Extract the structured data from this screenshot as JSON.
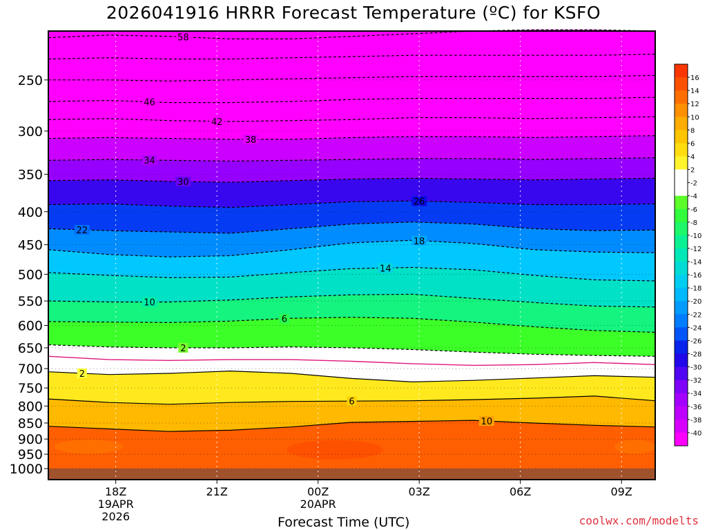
{
  "chart_data": {
    "type": "heatmap",
    "title": "2026041916 HRRR Forecast Temperature (ºC) for KSFO",
    "xlabel": "Forecast Time (UTC)",
    "ylabel": "",
    "y_scale": "log-pressure (hPa), inverted",
    "ylim": [
      1000,
      210
    ],
    "y_ticks": [
      "250",
      "300",
      "350",
      "400",
      "450",
      "500",
      "550",
      "600",
      "650",
      "700",
      "750",
      "800",
      "850",
      "900",
      "950",
      "1000"
    ],
    "x_ticks": [
      {
        "hour": 18,
        "lines": [
          "18Z",
          "19APR",
          "2026"
        ]
      },
      {
        "hour": 21,
        "lines": [
          "21Z"
        ]
      },
      {
        "hour": 24,
        "lines": [
          "00Z",
          "20APR"
        ]
      },
      {
        "hour": 27,
        "lines": [
          "03Z"
        ]
      },
      {
        "hour": 30,
        "lines": [
          "06Z"
        ]
      },
      {
        "hour": 33,
        "lines": [
          "09Z"
        ]
      }
    ],
    "xlim_hours": [
      16,
      34
    ],
    "colorbar": {
      "min": -40,
      "max": 16,
      "step": 2,
      "labels": [
        "16",
        "14",
        "12",
        "10",
        "8",
        "6",
        "4",
        "2",
        "-2",
        "-4",
        "-6",
        "-8",
        "-10",
        "-12",
        "-14",
        "-16",
        "-18",
        "-20",
        "-22",
        "-24",
        "-26",
        "-28",
        "-30",
        "-32",
        "-34",
        "-36",
        "-38",
        "-40"
      ]
    },
    "surface_color": "#a0522d",
    "isotherms": [
      {
        "value": -58,
        "label": "58",
        "label_hour": 20,
        "pressure": [
          215,
          213,
          214,
          216,
          216,
          214,
          212,
          210,
          209,
          209,
          210
        ]
      },
      {
        "value": -54,
        "label": "",
        "pressure": [
          232,
          231,
          232,
          232,
          231,
          230,
          229,
          229,
          229,
          229,
          228
        ]
      },
      {
        "value": -50,
        "label": "",
        "pressure": [
          250,
          250,
          251,
          250,
          249,
          248,
          247,
          247,
          247,
          247,
          246
        ]
      },
      {
        "value": -46,
        "label": "46",
        "label_hour": 19,
        "pressure": [
          270,
          269,
          271,
          271,
          270,
          268,
          267,
          267,
          267,
          267,
          266
        ]
      },
      {
        "value": -42,
        "label": "42",
        "label_hour": 21,
        "pressure": [
          288,
          287,
          289,
          290,
          289,
          288,
          286,
          286,
          287,
          286,
          285
        ]
      },
      {
        "value": -38,
        "label": "38",
        "label_hour": 22,
        "pressure": [
          308,
          307,
          308,
          309,
          309,
          307,
          306,
          306,
          307,
          306,
          305
        ]
      },
      {
        "value": -34,
        "label": "34",
        "label_hour": 19,
        "pressure": [
          333,
          332,
          333,
          334,
          333,
          332,
          331,
          331,
          332,
          331,
          330
        ]
      },
      {
        "value": -30,
        "label": "30",
        "label_hour": 20,
        "pressure": [
          358,
          357,
          359,
          360,
          358,
          356,
          355,
          356,
          357,
          356,
          355
        ]
      },
      {
        "value": -26,
        "label": "26",
        "label_hour": 27,
        "pressure": [
          390,
          389,
          392,
          394,
          390,
          386,
          385,
          387,
          390,
          390,
          389
        ]
      },
      {
        "value": -22,
        "label": "22",
        "label_hour": 17,
        "pressure": [
          425,
          428,
          430,
          432,
          425,
          418,
          415,
          418,
          425,
          428,
          427
        ]
      },
      {
        "value": -18,
        "label": "18",
        "label_hour": 27,
        "pressure": [
          458,
          466,
          470,
          468,
          458,
          447,
          443,
          448,
          458,
          462,
          463
        ]
      },
      {
        "value": -14,
        "label": "14",
        "label_hour": 26,
        "pressure": [
          497,
          502,
          506,
          505,
          497,
          490,
          488,
          492,
          502,
          510,
          512
        ]
      },
      {
        "value": -10,
        "label": "10",
        "label_hour": 19,
        "pressure": [
          550,
          552,
          552,
          548,
          542,
          538,
          537,
          545,
          553,
          560,
          562
        ]
      },
      {
        "value": -6,
        "label": "6",
        "label_hour": 23,
        "pressure": [
          592,
          593,
          594,
          591,
          585,
          583,
          585,
          593,
          603,
          611,
          615
        ]
      },
      {
        "value": -2,
        "label": "2",
        "label_hour": 20,
        "pressure": [
          643,
          648,
          650,
          650,
          648,
          650,
          654,
          660,
          665,
          668,
          670
        ]
      },
      {
        "value": 0,
        "label": "",
        "pressure": [
          670,
          678,
          680,
          678,
          678,
          682,
          688,
          692,
          690,
          685,
          690
        ]
      },
      {
        "value": 2,
        "label": "2",
        "label_hour": 17,
        "pressure": [
          708,
          715,
          712,
          706,
          712,
          725,
          734,
          730,
          724,
          718,
          722
        ]
      },
      {
        "value": 6,
        "label": "6",
        "label_hour": 25,
        "pressure": [
          780,
          790,
          795,
          790,
          787,
          786,
          785,
          782,
          778,
          772,
          785
        ]
      },
      {
        "value": 10,
        "label": "10",
        "label_hour": 29,
        "pressure": [
          860,
          868,
          876,
          872,
          862,
          848,
          845,
          842,
          850,
          857,
          862
        ]
      }
    ]
  },
  "watermark": "coolwx.com/modelts"
}
